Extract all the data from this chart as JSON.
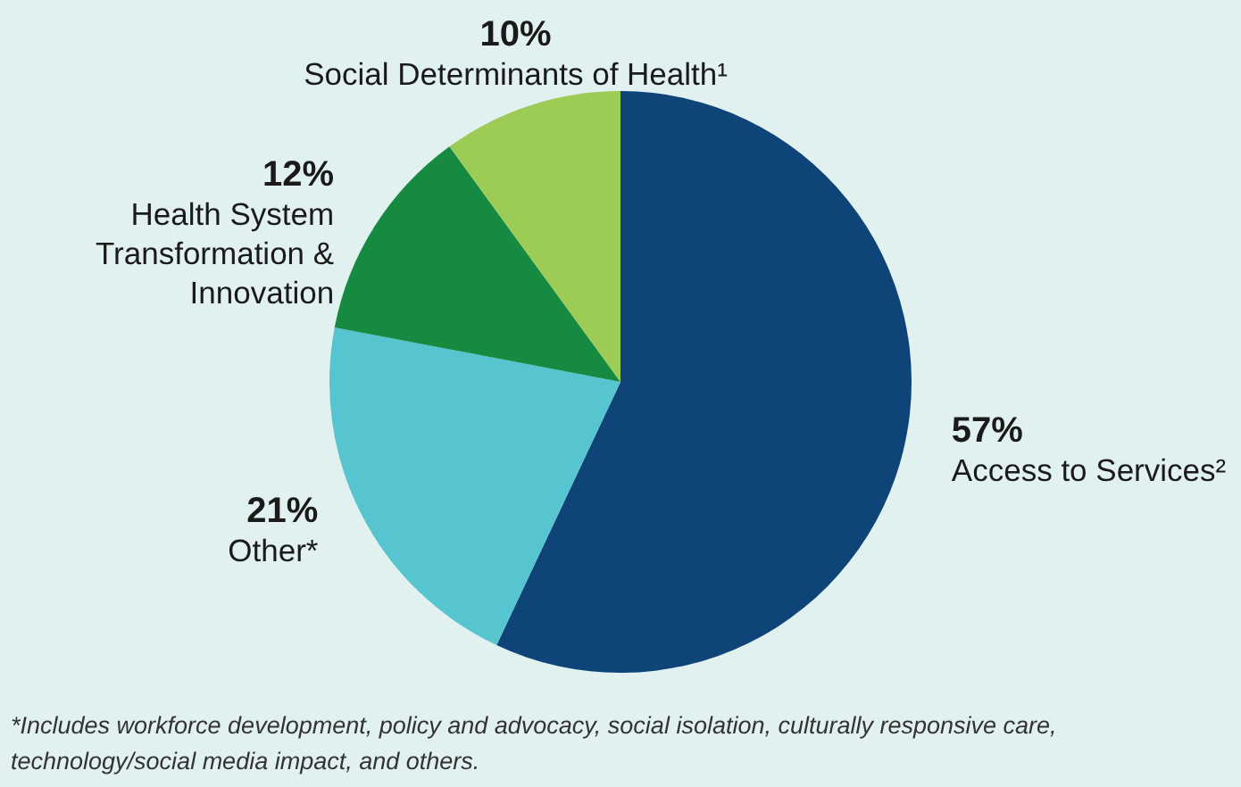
{
  "chart_data": {
    "type": "pie",
    "categories": [
      "Access to Services²",
      "Other*",
      "Health System Transformation & Innovation",
      "Social Determinants of Health¹"
    ],
    "values": [
      57,
      21,
      12,
      10
    ],
    "value_labels": [
      "57%",
      "21%",
      "12%",
      "10%"
    ],
    "colors": [
      "#0e4478",
      "#56c5d0",
      "#178a42",
      "#9ccc55"
    ],
    "annotations": [
      "*Includes workforce development, policy and advocacy, social isolation, culturally responsive care, technology/social media impact, and others."
    ]
  }
}
